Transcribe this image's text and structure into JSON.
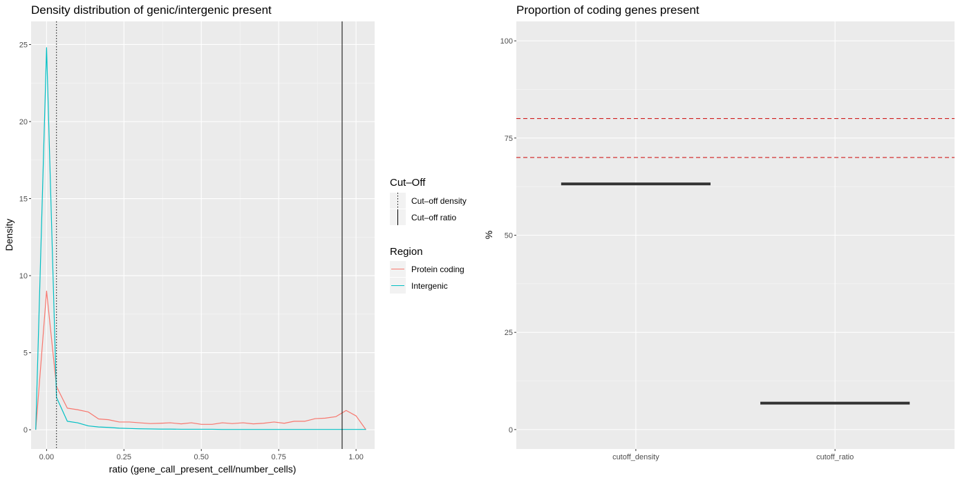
{
  "chart_data": [
    {
      "type": "line",
      "title": "Density distribution of genic/intergenic present",
      "xlabel": "ratio (gene_call_present_cell/number_cells)",
      "ylabel": "Density",
      "xlim": [
        -0.05,
        1.06
      ],
      "ylim": [
        -1.25,
        26.5
      ],
      "x_ticks": [
        0,
        0.25,
        0.5,
        0.75,
        1
      ],
      "x_tick_labels": [
        "0.00",
        "0.25",
        "0.50",
        "0.75",
        "1.00"
      ],
      "y_ticks": [
        0,
        5,
        10,
        15,
        20,
        25
      ],
      "y_tick_labels": [
        "0",
        "5",
        "10",
        "15",
        "20",
        "25"
      ],
      "grid": true,
      "x": [
        -0.035,
        0.0,
        0.032,
        0.067,
        0.1,
        0.135,
        0.168,
        0.2,
        0.235,
        0.268,
        0.3,
        0.335,
        0.368,
        0.4,
        0.435,
        0.468,
        0.5,
        0.535,
        0.568,
        0.6,
        0.635,
        0.668,
        0.7,
        0.735,
        0.768,
        0.8,
        0.835,
        0.868,
        0.9,
        0.935,
        0.968,
        1.0,
        1.032
      ],
      "series": [
        {
          "name": "Protein coding",
          "color": "#F8766D",
          "values": [
            0.0,
            9.0,
            2.8,
            1.4,
            1.3,
            1.15,
            0.7,
            0.65,
            0.5,
            0.5,
            0.45,
            0.4,
            0.42,
            0.45,
            0.38,
            0.45,
            0.35,
            0.35,
            0.45,
            0.4,
            0.45,
            0.38,
            0.42,
            0.5,
            0.42,
            0.55,
            0.55,
            0.72,
            0.75,
            0.85,
            1.25,
            0.9,
            0.0
          ]
        },
        {
          "name": "Intergenic",
          "color": "#00BFC4",
          "values": [
            0.0,
            24.8,
            2.1,
            0.55,
            0.45,
            0.25,
            0.18,
            0.15,
            0.1,
            0.08,
            0.06,
            0.05,
            0.04,
            0.04,
            0.03,
            0.03,
            0.03,
            0.03,
            0.02,
            0.02,
            0.02,
            0.02,
            0.02,
            0.02,
            0.02,
            0.02,
            0.02,
            0.02,
            0.02,
            0.02,
            0.02,
            0.02,
            0.02
          ]
        }
      ],
      "cutoffs": [
        {
          "name": "Cut–off density",
          "x": 0.032,
          "style": "dotted"
        },
        {
          "name": "Cut–off ratio",
          "x": 0.955,
          "style": "solid"
        }
      ],
      "legends": [
        {
          "title": "Cut–Off",
          "entries": [
            "Cut–off density",
            "Cut–off ratio"
          ]
        },
        {
          "title": "Region",
          "entries": [
            "Protein coding",
            "Intergenic"
          ]
        }
      ],
      "legend_position": "right"
    },
    {
      "type": "bar",
      "title": "Proportion of coding genes present",
      "xlabel": "",
      "ylabel": "%",
      "categories": [
        "cutoff_density",
        "cutoff_ratio"
      ],
      "values": [
        63.2,
        6.8
      ],
      "ylim": [
        -5,
        105
      ],
      "y_ticks": [
        0,
        25,
        50,
        75,
        100
      ],
      "y_tick_labels": [
        "0",
        "25",
        "50",
        "75",
        "100"
      ],
      "reference_lines": [
        {
          "y": 70,
          "color": "#cc0000",
          "style": "dashed"
        },
        {
          "y": 80,
          "color": "#cc0000",
          "style": "dashed"
        }
      ],
      "grid": true
    }
  ]
}
